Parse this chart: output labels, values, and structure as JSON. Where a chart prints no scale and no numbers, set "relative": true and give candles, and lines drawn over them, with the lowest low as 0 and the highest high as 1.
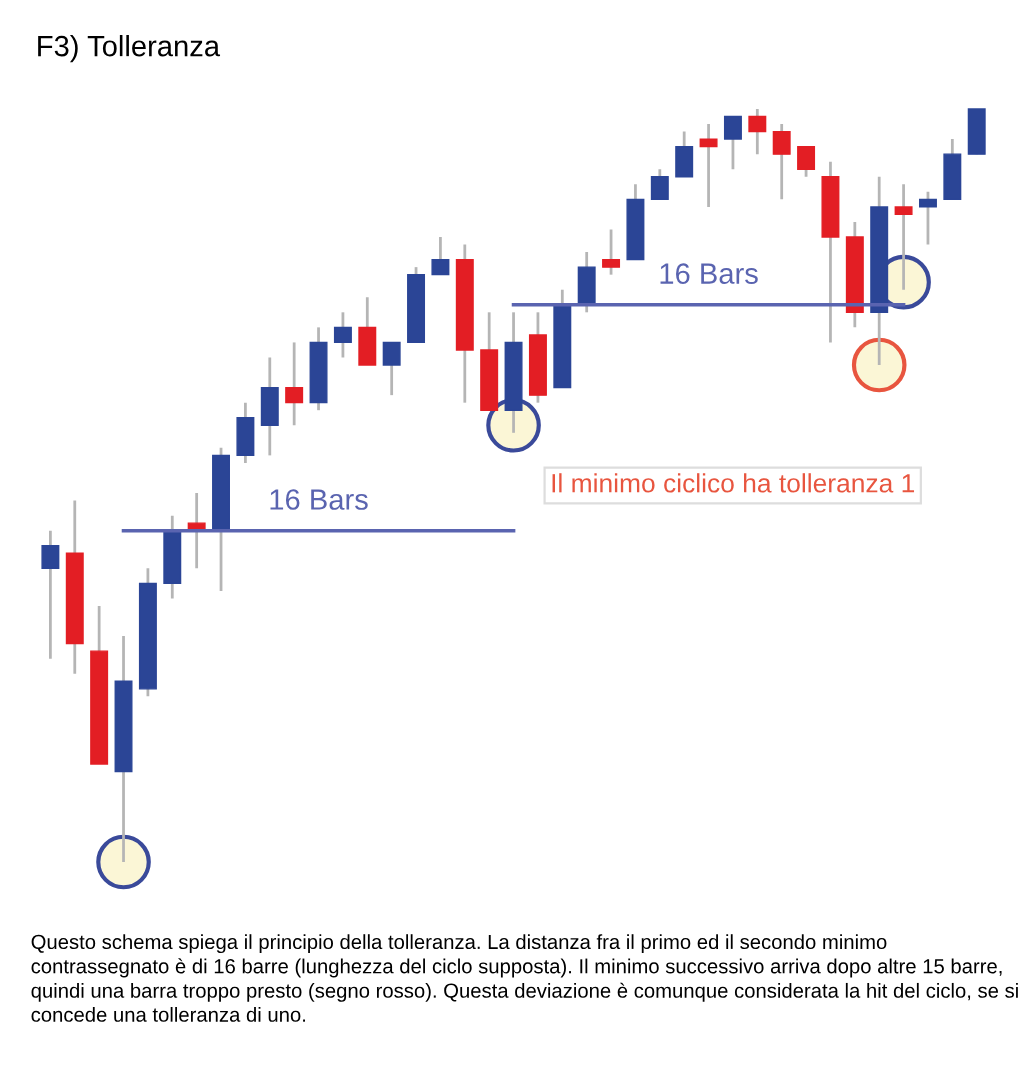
{
  "chart_data": {
    "type": "candlestick",
    "title": "F3) Tolleranza",
    "relative": true,
    "categories": [
      null,
      null,
      null,
      null,
      null,
      null,
      null,
      null,
      null,
      null,
      null,
      null,
      null,
      null,
      null,
      null,
      null,
      null,
      null,
      null,
      null,
      null,
      null,
      null,
      null,
      null,
      null,
      null,
      null,
      null,
      null,
      null,
      null,
      null,
      null,
      null,
      null,
      null,
      null
    ],
    "ohlc": [
      [
        0.39,
        0.44,
        0.27,
        0.42
      ],
      [
        0.41,
        0.48,
        0.25,
        0.29
      ],
      [
        0.28,
        0.34,
        0.13,
        0.13
      ],
      [
        0.12,
        0.3,
        0.0,
        0.24
      ],
      [
        0.23,
        0.39,
        0.22,
        0.37
      ],
      [
        0.37,
        0.46,
        0.35,
        0.44
      ],
      [
        0.45,
        0.49,
        0.39,
        0.44
      ],
      [
        0.44,
        0.55,
        0.36,
        0.54
      ],
      [
        0.54,
        0.61,
        0.53,
        0.59
      ],
      [
        0.58,
        0.67,
        0.54,
        0.63
      ],
      [
        0.63,
        0.69,
        0.58,
        0.61
      ],
      [
        0.61,
        0.71,
        0.6,
        0.69
      ],
      [
        0.69,
        0.73,
        0.67,
        0.71
      ],
      [
        0.71,
        0.75,
        0.66,
        0.66
      ],
      [
        0.66,
        0.69,
        0.62,
        0.69
      ],
      [
        0.69,
        0.79,
        0.69,
        0.78
      ],
      [
        0.78,
        0.83,
        0.78,
        0.8
      ],
      [
        0.8,
        0.82,
        0.61,
        0.68
      ],
      [
        0.68,
        0.73,
        0.6,
        0.6
      ],
      [
        0.6,
        0.73,
        0.57,
        0.69
      ],
      [
        0.7,
        0.73,
        0.61,
        0.62
      ],
      [
        0.63,
        0.76,
        0.63,
        0.74
      ],
      [
        0.74,
        0.81,
        0.73,
        0.79
      ],
      [
        0.8,
        0.84,
        0.78,
        0.79
      ],
      [
        0.8,
        0.9,
        0.8,
        0.88
      ],
      [
        0.88,
        0.92,
        0.88,
        0.91
      ],
      [
        0.91,
        0.97,
        0.91,
        0.95
      ],
      [
        0.96,
        0.98,
        0.87,
        0.95
      ],
      [
        0.96,
        0.99,
        0.92,
        0.99
      ],
      [
        0.99,
        1.0,
        0.94,
        0.97
      ],
      [
        0.97,
        0.98,
        0.88,
        0.94
      ],
      [
        0.95,
        0.95,
        0.91,
        0.92
      ],
      [
        0.91,
        0.93,
        0.69,
        0.83
      ],
      [
        0.83,
        0.85,
        0.71,
        0.73
      ],
      [
        0.73,
        0.91,
        0.66,
        0.87
      ],
      [
        0.87,
        0.9,
        0.76,
        0.86
      ],
      [
        0.87,
        0.89,
        0.82,
        0.88
      ],
      [
        0.88,
        0.96,
        0.88,
        0.94
      ],
      [
        0.94,
        1.0,
        0.94,
        1.0
      ]
    ],
    "colors": [
      "#2b4596",
      "#e31e24",
      "#e31e24",
      "#2b4596",
      "#2b4596",
      "#2b4596",
      "#e31e24",
      "#2b4596",
      "#2b4596",
      "#2b4596",
      "#e31e24",
      "#2b4596",
      "#2b4596",
      "#e31e24",
      "#2b4596",
      "#2b4596",
      "#2b4596",
      "#e31e24",
      "#e31e24",
      "#2b4596",
      "#e31e24",
      "#2b4596",
      "#2b4596",
      "#e31e24",
      "#2b4596",
      "#2b4596",
      "#2b4596",
      "#e31e24",
      "#2b4596",
      "#e31e24",
      "#e31e24",
      "#e31e24",
      "#e31e24",
      "#e31e24",
      "#2b4596",
      "#e31e24",
      "#2b4596",
      "#2b4596",
      "#2b4596"
    ],
    "series": [
      {
        "type": "line",
        "name": "16 Bars",
        "color": "#5a64b0",
        "values": [
          null,
          null,
          null,
          0.44,
          0.44,
          0.44,
          0.44,
          0.44,
          0.44,
          0.44,
          0.44,
          0.44,
          0.44,
          0.44,
          0.44,
          0.44,
          0.44,
          0.44,
          0.44,
          0.44,
          null,
          null,
          null,
          null,
          null,
          null,
          null,
          null,
          null,
          null,
          null,
          null,
          null,
          null,
          null,
          null,
          null,
          null,
          null
        ]
      },
      {
        "type": "line",
        "name": "16 Bars",
        "color": "#5a64b0",
        "values": [
          null,
          null,
          null,
          null,
          null,
          null,
          null,
          null,
          null,
          null,
          null,
          null,
          null,
          null,
          null,
          null,
          null,
          null,
          null,
          0.74,
          0.74,
          0.74,
          0.74,
          0.74,
          0.74,
          0.74,
          0.74,
          0.74,
          0.74,
          0.74,
          0.74,
          0.74,
          0.74,
          0.74,
          0.74,
          0.74,
          null,
          null,
          null
        ]
      },
      {
        "type": "scatter",
        "marker": "circle",
        "color": "#3a4a9a",
        "values": [
          null,
          null,
          null,
          0.0,
          null,
          null,
          null,
          null,
          null,
          null,
          null,
          null,
          null,
          null,
          null,
          null,
          null,
          null,
          null,
          0.58,
          null,
          null,
          null,
          null,
          null,
          null,
          null,
          null,
          null,
          null,
          null,
          null,
          null,
          null,
          null,
          0.77,
          null,
          null,
          null
        ]
      },
      {
        "type": "scatter",
        "marker": "circle",
        "color": "#e8553f",
        "values": [
          null,
          null,
          null,
          null,
          null,
          null,
          null,
          null,
          null,
          null,
          null,
          null,
          null,
          null,
          null,
          null,
          null,
          null,
          null,
          null,
          null,
          null,
          null,
          null,
          null,
          null,
          null,
          null,
          null,
          null,
          null,
          null,
          null,
          null,
          0.66,
          null,
          null,
          null,
          null
        ]
      }
    ],
    "annotations": [
      "Il minimo ciclico ha tolleranza 1",
      "Questo schema spiega il principio della tolleranza. La distanza fra il primo ed il secondo minimo contrassegnato è di 16 barre (lunghezza del ciclo supposta). Il minimo successivo arriva dopo altre 15 barre, quindi una barra troppo presto (segno rosso). Questa deviazione è comunque considerata la hit del ciclo, se si concede una tolleranza di uno."
    ]
  }
}
